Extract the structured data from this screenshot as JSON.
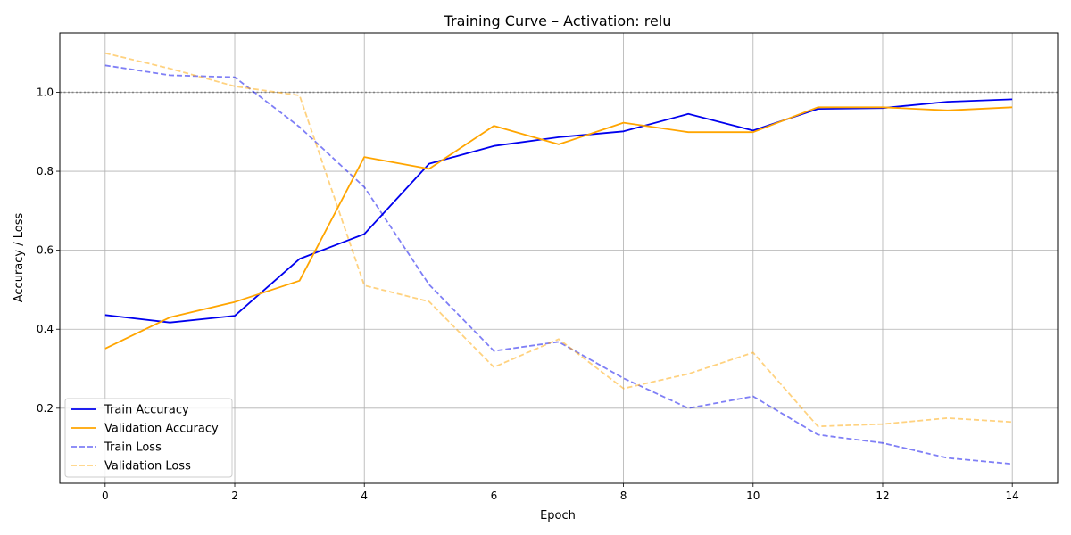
{
  "chart_data": {
    "type": "line",
    "title": "Training Curve – Activation: relu",
    "xlabel": "Epoch",
    "ylabel": "Accuracy / Loss",
    "xlim": [
      -0.7,
      14.7
    ],
    "ylim": [
      0.01,
      1.15
    ],
    "xticks": [
      0,
      2,
      4,
      6,
      8,
      10,
      12,
      14
    ],
    "yticks": [
      0.2,
      0.4,
      0.6,
      0.8,
      1.0
    ],
    "grid": true,
    "legend_position": "lower-left",
    "reference_line": {
      "y": 1.0,
      "style": "dotted",
      "color": "#808080"
    },
    "x": [
      0,
      1,
      2,
      3,
      4,
      5,
      6,
      7,
      8,
      9,
      10,
      11,
      12,
      13,
      14
    ],
    "series": [
      {
        "name": "Train Accuracy",
        "color": "#0000ee",
        "dash": false,
        "opacity": 1,
        "values": [
          0.436,
          0.417,
          0.434,
          0.578,
          0.641,
          0.819,
          0.864,
          0.886,
          0.901,
          0.945,
          0.903,
          0.958,
          0.96,
          0.976,
          0.982
        ]
      },
      {
        "name": "Validation Accuracy",
        "color": "#ffa500",
        "dash": false,
        "opacity": 1,
        "values": [
          0.351,
          0.43,
          0.469,
          0.523,
          0.836,
          0.806,
          0.915,
          0.868,
          0.923,
          0.899,
          0.899,
          0.962,
          0.962,
          0.954,
          0.962
        ]
      },
      {
        "name": "Train Loss",
        "color": "#0000ee",
        "dash": true,
        "opacity": 0.5,
        "values": [
          1.068,
          1.043,
          1.038,
          0.912,
          0.76,
          0.513,
          0.345,
          0.368,
          0.276,
          0.2,
          0.23,
          0.133,
          0.112,
          0.074,
          0.059
        ]
      },
      {
        "name": "Validation Loss",
        "color": "#ffa500",
        "dash": true,
        "opacity": 0.5,
        "values": [
          1.099,
          1.06,
          1.015,
          0.992,
          0.511,
          0.47,
          0.304,
          0.375,
          0.25,
          0.287,
          0.341,
          0.154,
          0.16,
          0.175,
          0.165
        ]
      }
    ]
  }
}
